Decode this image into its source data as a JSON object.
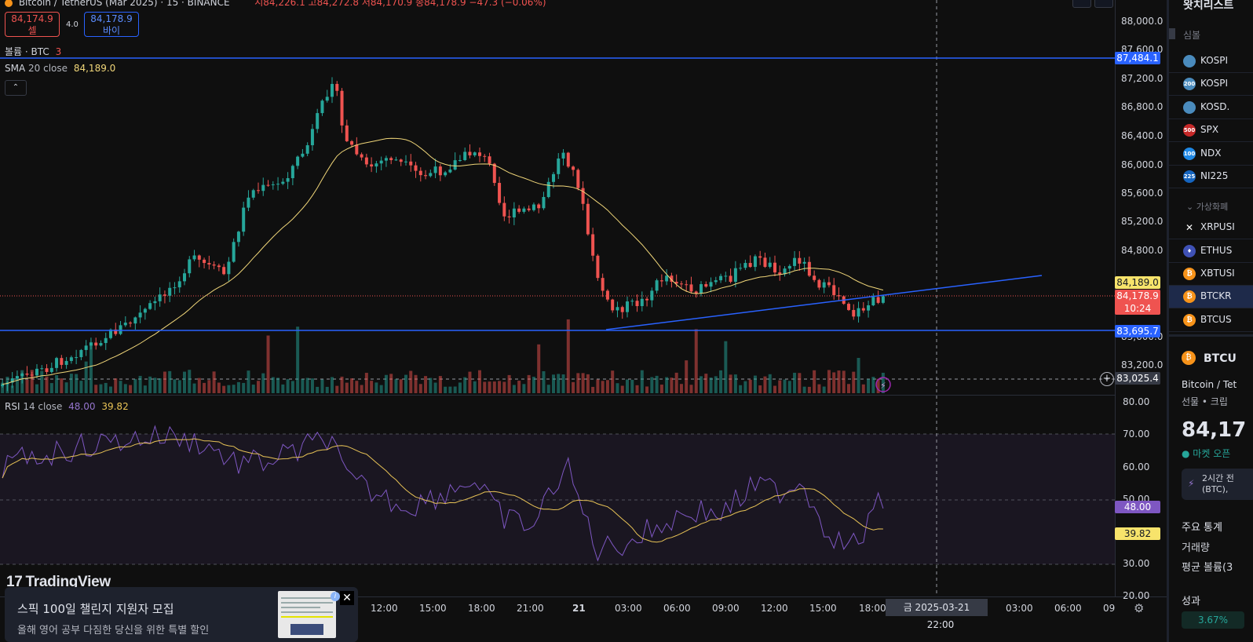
{
  "header": {
    "title": "Bitcoin / TetherUS (Mar 2025) · 15 · BINANCE",
    "ohlc": "시84,226.1 고84,272.8 저84,170.9 종84,178.9 −47.3 (−0.06%)"
  },
  "trade": {
    "sell_price": "84,174.9",
    "sell_label": "셀",
    "spread": "4.0",
    "buy_price": "84,178.9",
    "buy_label": "바이"
  },
  "legends": {
    "volume_name": "볼륨 · BTC",
    "volume_value": "3",
    "sma_name": "SMA",
    "sma_params": "20 close",
    "sma_value": "84,189.0",
    "collapse": "⌃",
    "rsi_name": "RSI",
    "rsi_params": "14 close",
    "rsi_value": "48.00",
    "rsi_ma_value": "39.82"
  },
  "price_axis": [
    "88,000.0",
    "87,600.0",
    "87,200.0",
    "86,800.0",
    "86,400.0",
    "86,000.0",
    "85,600.0",
    "85,200.0",
    "84,800.0",
    "83,600.0",
    "83,200.0"
  ],
  "price_tags": {
    "resistance": "87,484.1",
    "sma": "84,189.0",
    "last_price": "84,178.9",
    "countdown": "10:24",
    "support": "83,695.7",
    "crosshair": "83,025.4"
  },
  "rsi_axis": [
    "80.00",
    "70.00",
    "60.00",
    "50.00",
    "30.00",
    "20.00"
  ],
  "rsi_tags": {
    "rsi": "48.00",
    "rsi_ma": "39.82"
  },
  "time_axis": [
    "12:00",
    "15:00",
    "18:00",
    "21:00",
    "21",
    "03:00",
    "06:00",
    "09:00",
    "12:00",
    "15:00",
    "18:00",
    "03:00",
    "06:00",
    "09"
  ],
  "time_cursor": {
    "date": "금 2025-03-21",
    "time": "22:00"
  },
  "logo": "TradingView",
  "ad": {
    "title": "스픽 100일 챌린지 지원자 모집",
    "body": "올해 영어 공부 다짐한 당신을 위한 특별 할인"
  },
  "colors": {
    "up": "#26a69a",
    "down": "#ef5350",
    "line": "#2962ff",
    "sma": "#f0d679",
    "rsi": "#7e57c2",
    "rsi_ma": "#e8c356"
  },
  "sidebar": {
    "title": "왓치리스트",
    "column": "심볼",
    "items": [
      {
        "symbol": "KOSPI",
        "icon": "kr-flag-icon",
        "badge": ""
      },
      {
        "symbol": "KOSPI",
        "icon": "kospi200-icon",
        "badge": "200"
      },
      {
        "symbol": "KOSD.",
        "icon": "kosdaq-icon",
        "badge": ""
      },
      {
        "symbol": "SPX",
        "icon": "sp500-icon",
        "badge": "500"
      },
      {
        "symbol": "NDX",
        "icon": "nasdaq100-icon",
        "badge": "100"
      },
      {
        "symbol": "NI225",
        "icon": "nikkei-icon",
        "badge": "225"
      }
    ],
    "group_label": "가상화폐",
    "crypto_items": [
      {
        "symbol": "XRPUSI",
        "icon": "xrp-icon"
      },
      {
        "symbol": "ETHUS",
        "icon": "eth-icon"
      },
      {
        "symbol": "XBTUSI",
        "icon": "btc-icon"
      },
      {
        "symbol": "BTCKR",
        "icon": "btc-icon"
      },
      {
        "symbol": "BTCUS",
        "icon": "btc-icon"
      }
    ],
    "detail": {
      "symbol": "BTCU",
      "name": "Bitcoin / Tet",
      "category": "선물 • 크립",
      "price": "84,17",
      "market_status": "마켓 오픈",
      "news_time": "2시간 전",
      "news_text": "(BTC),",
      "stats_title": "주요 통계",
      "volume_label": "거래량",
      "avg_volume_label": "평균 볼륨(3",
      "performance_title": "성과",
      "performance_value": "3.67%"
    }
  }
}
